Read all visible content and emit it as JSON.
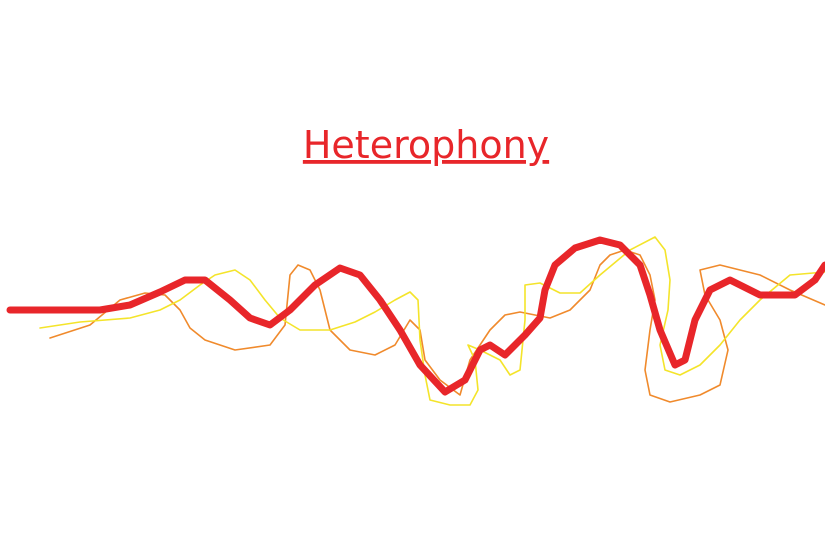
{
  "title": "Heterophony"
}
